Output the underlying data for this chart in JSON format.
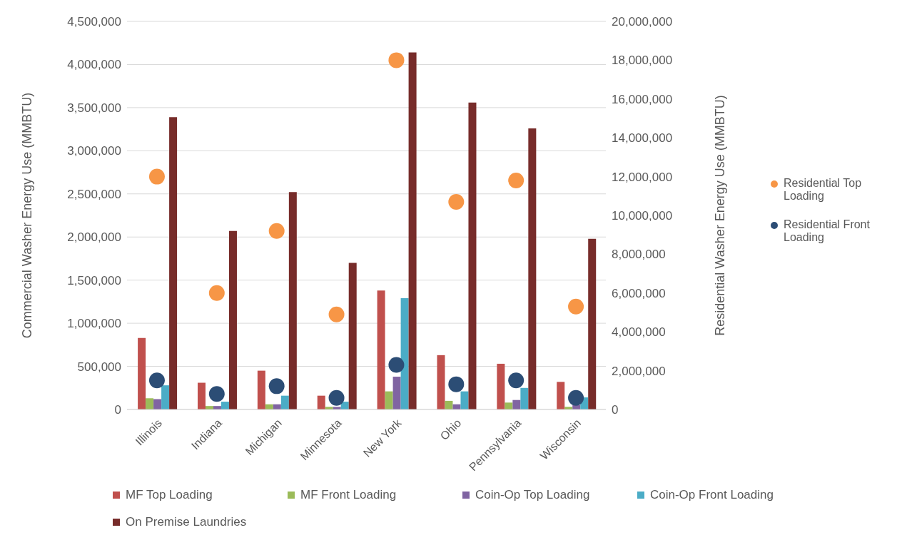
{
  "chart_data": {
    "type": "bar",
    "categories": [
      "Illinois",
      "Indiana",
      "Michigan",
      "Minnesota",
      "New York",
      "Ohio",
      "Pennsylvania",
      "Wisconsin"
    ],
    "ylabel": "Commercial Washer Energy Use (MMBTU)",
    "y2label": "Residential Washer Energy Use (MMBTU)",
    "series": [
      {
        "name": "MF Top Loading",
        "color": "#c0504d",
        "values": [
          830000,
          310000,
          450000,
          160000,
          1380000,
          630000,
          530000,
          320000
        ]
      },
      {
        "name": "MF Front Loading",
        "color": "#9bbb59",
        "values": [
          130000,
          40000,
          60000,
          30000,
          210000,
          100000,
          80000,
          30000
        ]
      },
      {
        "name": "Coin-Op Top Loading",
        "color": "#8064a2",
        "values": [
          120000,
          40000,
          60000,
          30000,
          380000,
          60000,
          110000,
          50000
        ]
      },
      {
        "name": "Coin-Op Front Loading",
        "color": "#4bacc6",
        "values": [
          280000,
          90000,
          160000,
          90000,
          1290000,
          210000,
          250000,
          140000
        ]
      },
      {
        "name": "On Premise Laundries",
        "color": "#772c2a",
        "values": [
          3390000,
          2070000,
          2520000,
          1700000,
          4140000,
          3560000,
          3260000,
          1980000
        ]
      },
      {
        "name": "Residential Top Loading",
        "type": "scatter",
        "axis": "y2",
        "color": "#f79646",
        "values": [
          12000000,
          6000000,
          9200000,
          4900000,
          18000000,
          10700000,
          11800000,
          5300000
        ]
      },
      {
        "name": "Residential Front Loading",
        "type": "scatter",
        "axis": "y2",
        "color": "#2c4d75",
        "values": [
          1500000,
          800000,
          1200000,
          600000,
          2300000,
          1300000,
          1500000,
          600000
        ]
      }
    ],
    "ylim": [
      0,
      4500000
    ],
    "yticks": [
      0,
      {
        "value": 500000,
        "label": "500,000"
      },
      {
        "value": 1000000,
        "label": "1,000,000"
      },
      {
        "value": 1500000,
        "label": "1,500,000"
      },
      {
        "value": 2000000,
        "label": "2,000,000"
      },
      {
        "value": 2500000,
        "label": "2,500,000"
      },
      {
        "value": 3000000,
        "label": "3,000,000"
      },
      {
        "value": 3500000,
        "label": "3,500,000"
      },
      {
        "value": 4000000,
        "label": "4,000,000"
      },
      {
        "value": 4500000,
        "label": "4,500,000"
      }
    ],
    "y2lim": [
      0,
      20000000
    ],
    "y2ticks": [
      0,
      {
        "value": 2000000,
        "label": "2,000,000"
      },
      {
        "value": 4000000,
        "label": "4,000,000"
      },
      {
        "value": 6000000,
        "label": "6,000,000"
      },
      {
        "value": 8000000,
        "label": "8,000,000"
      },
      {
        "value": 10000000,
        "label": "10,000,000"
      },
      {
        "value": 12000000,
        "label": "12,000,000"
      },
      {
        "value": 14000000,
        "label": "14,000,000"
      },
      {
        "value": 16000000,
        "label": "16,000,000"
      },
      {
        "value": 18000000,
        "label": "18,000,000"
      },
      {
        "value": 20000000,
        "label": "20,000,000"
      }
    ],
    "grid": "y",
    "legend": "bottom",
    "marker": "circle"
  }
}
